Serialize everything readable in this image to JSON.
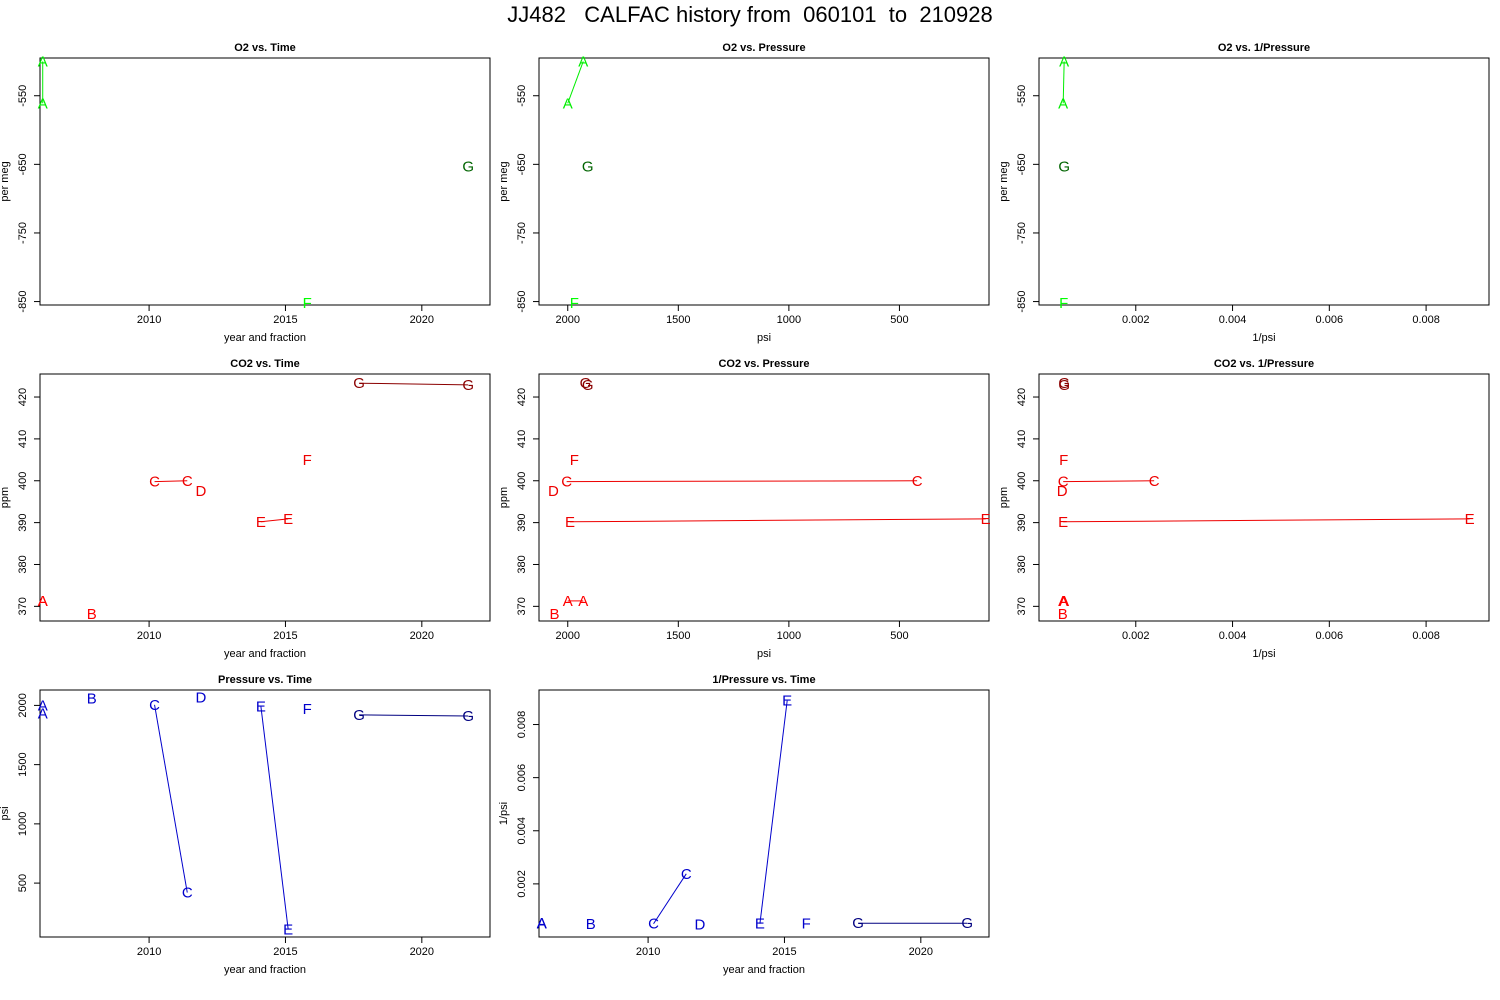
{
  "title": "JJ482   CALFAC history from  060101  to  210928",
  "colors": {
    "A": "#00ee00",
    "B": "#ff0000",
    "C": "#ee0000",
    "D": "#ee0000",
    "E": "#ee0000",
    "F": "#00ff00",
    "G": "#006400",
    "G_co2": "#8b0000",
    "blue": "#0000cc",
    "navy": "#000080"
  },
  "chart_data": [
    {
      "type": "scatter",
      "title": "O2 vs. Time",
      "xlabel": "year and fraction",
      "ylabel": "per meg",
      "xlim": [
        2006,
        2022.5
      ],
      "ylim": [
        -855,
        -495
      ],
      "xticks": [
        2010,
        2015,
        2020
      ],
      "yticks": [
        -550,
        -650,
        -750,
        -850
      ],
      "color": "A",
      "points": [
        {
          "label": "A",
          "x": 2006.1,
          "y": -500,
          "color": "A"
        },
        {
          "label": "A",
          "x": 2006.1,
          "y": -561,
          "color": "A"
        },
        {
          "label": "F",
          "x": 2015.8,
          "y": -852,
          "color": "F"
        },
        {
          "label": "G",
          "x": 2021.7,
          "y": -653,
          "color": "G"
        }
      ],
      "lines": [
        [
          0,
          1
        ]
      ]
    },
    {
      "type": "scatter",
      "title": "O2 vs. Pressure",
      "xlabel": "psi",
      "ylabel": "per meg",
      "xlim": [
        2130,
        95
      ],
      "ylim": [
        -855,
        -495
      ],
      "xticks": [
        2000,
        1500,
        1000,
        500
      ],
      "yticks": [
        -550,
        -650,
        -750,
        -850
      ],
      "points": [
        {
          "label": "A",
          "x": 1930,
          "y": -500,
          "color": "A"
        },
        {
          "label": "A",
          "x": 2000,
          "y": -561,
          "color": "A"
        },
        {
          "label": "G",
          "x": 1910,
          "y": -653,
          "color": "G"
        },
        {
          "label": "F",
          "x": 1970,
          "y": -852,
          "color": "F"
        }
      ],
      "lines": [
        [
          0,
          1
        ]
      ]
    },
    {
      "type": "scatter",
      "title": "O2 vs. 1/Pressure",
      "xlabel": "1/psi",
      "ylabel": "per meg",
      "xlim": [
        0.0,
        0.0093
      ],
      "ylim": [
        -855,
        -495
      ],
      "xticks": [
        0.002,
        0.004,
        0.006,
        0.008
      ],
      "yticks": [
        -550,
        -650,
        -750,
        -850
      ],
      "points": [
        {
          "label": "A",
          "x": 0.00052,
          "y": -500,
          "color": "A"
        },
        {
          "label": "A",
          "x": 0.0005,
          "y": -561,
          "color": "A"
        },
        {
          "label": "G",
          "x": 0.00052,
          "y": -653,
          "color": "G"
        },
        {
          "label": "F",
          "x": 0.00051,
          "y": -852,
          "color": "F"
        }
      ],
      "lines": [
        [
          0,
          1
        ]
      ]
    },
    {
      "type": "scatter",
      "title": "CO2 vs. Time",
      "xlabel": "year and fraction",
      "ylabel": "ppm",
      "xlim": [
        2006,
        2022.5
      ],
      "ylim": [
        366.5,
        425.5
      ],
      "xticks": [
        2010,
        2015,
        2020
      ],
      "yticks": [
        370,
        380,
        390,
        400,
        410,
        420
      ],
      "points": [
        {
          "label": "A",
          "x": 2006.1,
          "y": 371.3,
          "color": "B"
        },
        {
          "label": "A",
          "x": 2006.1,
          "y": 371.3,
          "color": "B"
        },
        {
          "label": "B",
          "x": 2007.9,
          "y": 368.2,
          "color": "B"
        },
        {
          "label": "C",
          "x": 2010.2,
          "y": 399.8,
          "color": "C"
        },
        {
          "label": "C",
          "x": 2011.4,
          "y": 400.0,
          "color": "C"
        },
        {
          "label": "D",
          "x": 2011.9,
          "y": 397.6,
          "color": "D"
        },
        {
          "label": "E",
          "x": 2014.1,
          "y": 390.2,
          "color": "E"
        },
        {
          "label": "E",
          "x": 2015.1,
          "y": 390.9,
          "color": "E"
        },
        {
          "label": "F",
          "x": 2015.8,
          "y": 404.9,
          "color": "E"
        },
        {
          "label": "G",
          "x": 2017.7,
          "y": 423.3,
          "color": "G_co2"
        },
        {
          "label": "G",
          "x": 2021.7,
          "y": 422.9,
          "color": "G_co2"
        }
      ],
      "lines": [
        [
          3,
          4
        ],
        [
          6,
          7
        ],
        [
          9,
          10
        ]
      ]
    },
    {
      "type": "scatter",
      "title": "CO2 vs. Pressure",
      "xlabel": "psi",
      "ylabel": "ppm",
      "xlim": [
        2130,
        95
      ],
      "ylim": [
        366.5,
        425.5
      ],
      "xticks": [
        2000,
        1500,
        1000,
        500
      ],
      "yticks": [
        370,
        380,
        390,
        400,
        410,
        420
      ],
      "points": [
        {
          "label": "A",
          "x": 2000,
          "y": 371.3,
          "color": "B"
        },
        {
          "label": "A",
          "x": 1930,
          "y": 371.3,
          "color": "B"
        },
        {
          "label": "B",
          "x": 2060,
          "y": 368.2,
          "color": "B"
        },
        {
          "label": "C",
          "x": 2005,
          "y": 399.8,
          "color": "C"
        },
        {
          "label": "C",
          "x": 420,
          "y": 400.0,
          "color": "C"
        },
        {
          "label": "D",
          "x": 2065,
          "y": 397.6,
          "color": "D"
        },
        {
          "label": "E",
          "x": 1990,
          "y": 390.2,
          "color": "E"
        },
        {
          "label": "E",
          "x": 110,
          "y": 390.9,
          "color": "E"
        },
        {
          "label": "F",
          "x": 1970,
          "y": 404.9,
          "color": "E"
        },
        {
          "label": "G",
          "x": 1920,
          "y": 423.3,
          "color": "G_co2"
        },
        {
          "label": "G",
          "x": 1910,
          "y": 422.9,
          "color": "G_co2"
        }
      ],
      "lines": [
        [
          0,
          1
        ],
        [
          3,
          4
        ],
        [
          6,
          7
        ]
      ]
    },
    {
      "type": "scatter",
      "title": "CO2 vs. 1/Pressure",
      "xlabel": "1/psi",
      "ylabel": "ppm",
      "xlim": [
        0.0,
        0.0093
      ],
      "ylim": [
        366.5,
        425.5
      ],
      "xticks": [
        0.002,
        0.004,
        0.006,
        0.008
      ],
      "yticks": [
        370,
        380,
        390,
        400,
        410,
        420
      ],
      "points": [
        {
          "label": "A",
          "x": 0.0005,
          "y": 371.3,
          "color": "B"
        },
        {
          "label": "A",
          "x": 0.00052,
          "y": 371.3,
          "color": "B"
        },
        {
          "label": "B",
          "x": 0.00049,
          "y": 368.2,
          "color": "B"
        },
        {
          "label": "C",
          "x": 0.0005,
          "y": 399.8,
          "color": "C"
        },
        {
          "label": "C",
          "x": 0.00238,
          "y": 400.0,
          "color": "C"
        },
        {
          "label": "D",
          "x": 0.00048,
          "y": 397.6,
          "color": "D"
        },
        {
          "label": "E",
          "x": 0.0005,
          "y": 390.2,
          "color": "E"
        },
        {
          "label": "E",
          "x": 0.0089,
          "y": 390.9,
          "color": "E"
        },
        {
          "label": "F",
          "x": 0.00051,
          "y": 404.9,
          "color": "E"
        },
        {
          "label": "G",
          "x": 0.00052,
          "y": 423.3,
          "color": "G_co2"
        },
        {
          "label": "G",
          "x": 0.00052,
          "y": 422.9,
          "color": "G_co2"
        }
      ],
      "lines": [
        [
          3,
          4
        ],
        [
          6,
          7
        ]
      ]
    },
    {
      "type": "scatter",
      "title": "Pressure vs. Time",
      "xlabel": "year and fraction",
      "ylabel": "psi",
      "xlim": [
        2006,
        2022.5
      ],
      "ylim": [
        45,
        2130
      ],
      "xticks": [
        2010,
        2015,
        2020
      ],
      "yticks": [
        500,
        1000,
        1500,
        2000
      ],
      "points": [
        {
          "label": "A",
          "x": 2006.1,
          "y": 2000,
          "color": "blue"
        },
        {
          "label": "A",
          "x": 2006.1,
          "y": 1930,
          "color": "blue"
        },
        {
          "label": "B",
          "x": 2007.9,
          "y": 2060,
          "color": "blue"
        },
        {
          "label": "C",
          "x": 2010.2,
          "y": 2005,
          "color": "blue"
        },
        {
          "label": "C",
          "x": 2011.4,
          "y": 420,
          "color": "blue"
        },
        {
          "label": "D",
          "x": 2011.9,
          "y": 2065,
          "color": "blue"
        },
        {
          "label": "E",
          "x": 2014.1,
          "y": 1990,
          "color": "blue"
        },
        {
          "label": "E",
          "x": 2015.1,
          "y": 110,
          "color": "blue"
        },
        {
          "label": "F",
          "x": 2015.8,
          "y": 1970,
          "color": "blue"
        },
        {
          "label": "G",
          "x": 2017.7,
          "y": 1920,
          "color": "navy"
        },
        {
          "label": "G",
          "x": 2021.7,
          "y": 1910,
          "color": "navy"
        }
      ],
      "lines": [
        [
          3,
          4
        ],
        [
          6,
          7
        ],
        [
          9,
          10
        ]
      ]
    },
    {
      "type": "scatter",
      "title": "1/Pressure vs. Time",
      "xlabel": "year and fraction",
      "ylabel": "1/psi",
      "xlim": [
        2006,
        2022.5
      ],
      "ylim": [
        0.0,
        0.0093
      ],
      "xticks": [
        2010,
        2015,
        2020
      ],
      "yticks": [
        0.002,
        0.004,
        0.006,
        0.008
      ],
      "points": [
        {
          "label": "A",
          "x": 2006.1,
          "y": 0.0005,
          "color": "blue"
        },
        {
          "label": "A",
          "x": 2006.1,
          "y": 0.00052,
          "color": "blue"
        },
        {
          "label": "B",
          "x": 2007.9,
          "y": 0.00049,
          "color": "blue"
        },
        {
          "label": "C",
          "x": 2010.2,
          "y": 0.0005,
          "color": "blue"
        },
        {
          "label": "C",
          "x": 2011.4,
          "y": 0.00238,
          "color": "blue"
        },
        {
          "label": "D",
          "x": 2011.9,
          "y": 0.00048,
          "color": "blue"
        },
        {
          "label": "E",
          "x": 2014.1,
          "y": 0.0005,
          "color": "blue"
        },
        {
          "label": "E",
          "x": 2015.1,
          "y": 0.0089,
          "color": "blue"
        },
        {
          "label": "F",
          "x": 2015.8,
          "y": 0.00051,
          "color": "blue"
        },
        {
          "label": "G",
          "x": 2017.7,
          "y": 0.00052,
          "color": "navy"
        },
        {
          "label": "G",
          "x": 2021.7,
          "y": 0.00052,
          "color": "navy"
        }
      ],
      "lines": [
        [
          3,
          4
        ],
        [
          6,
          7
        ],
        [
          9,
          10
        ]
      ]
    }
  ]
}
